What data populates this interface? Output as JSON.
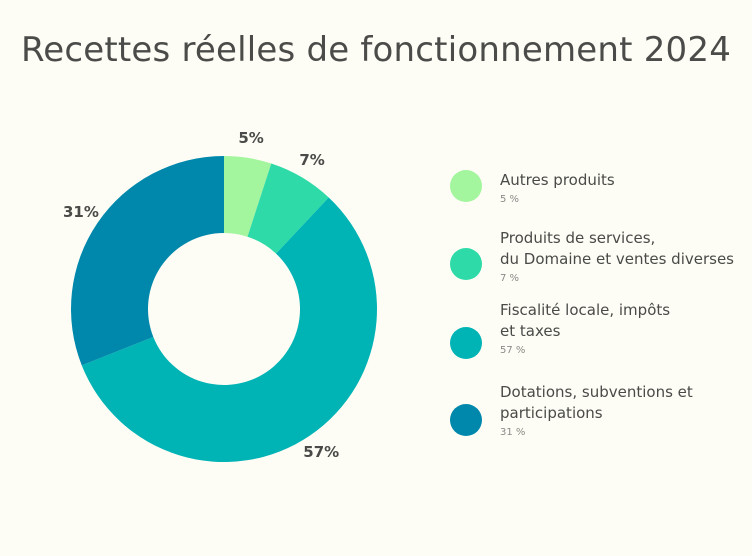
{
  "chart_data": {
    "type": "pie",
    "title": "Recettes réelles de fonctionnement 2024",
    "categories": [
      "Autres produits",
      "Produits de services,\ndu Domaine et ventes diverses",
      "Fiscalité locale, impôts\net taxes",
      "Dotations, subventions et\nparticipations"
    ],
    "values": [
      5,
      7,
      57,
      31
    ],
    "slice_labels": [
      "5%",
      "7%",
      "57%",
      "31%"
    ],
    "legend_values": [
      "5 %",
      "7 %",
      "57 %",
      "31 %"
    ],
    "colors": [
      "#a3f59e",
      "#2edba8",
      "#00b3b5",
      "#0088ac"
    ],
    "legend_position": "right",
    "style": "donut"
  }
}
